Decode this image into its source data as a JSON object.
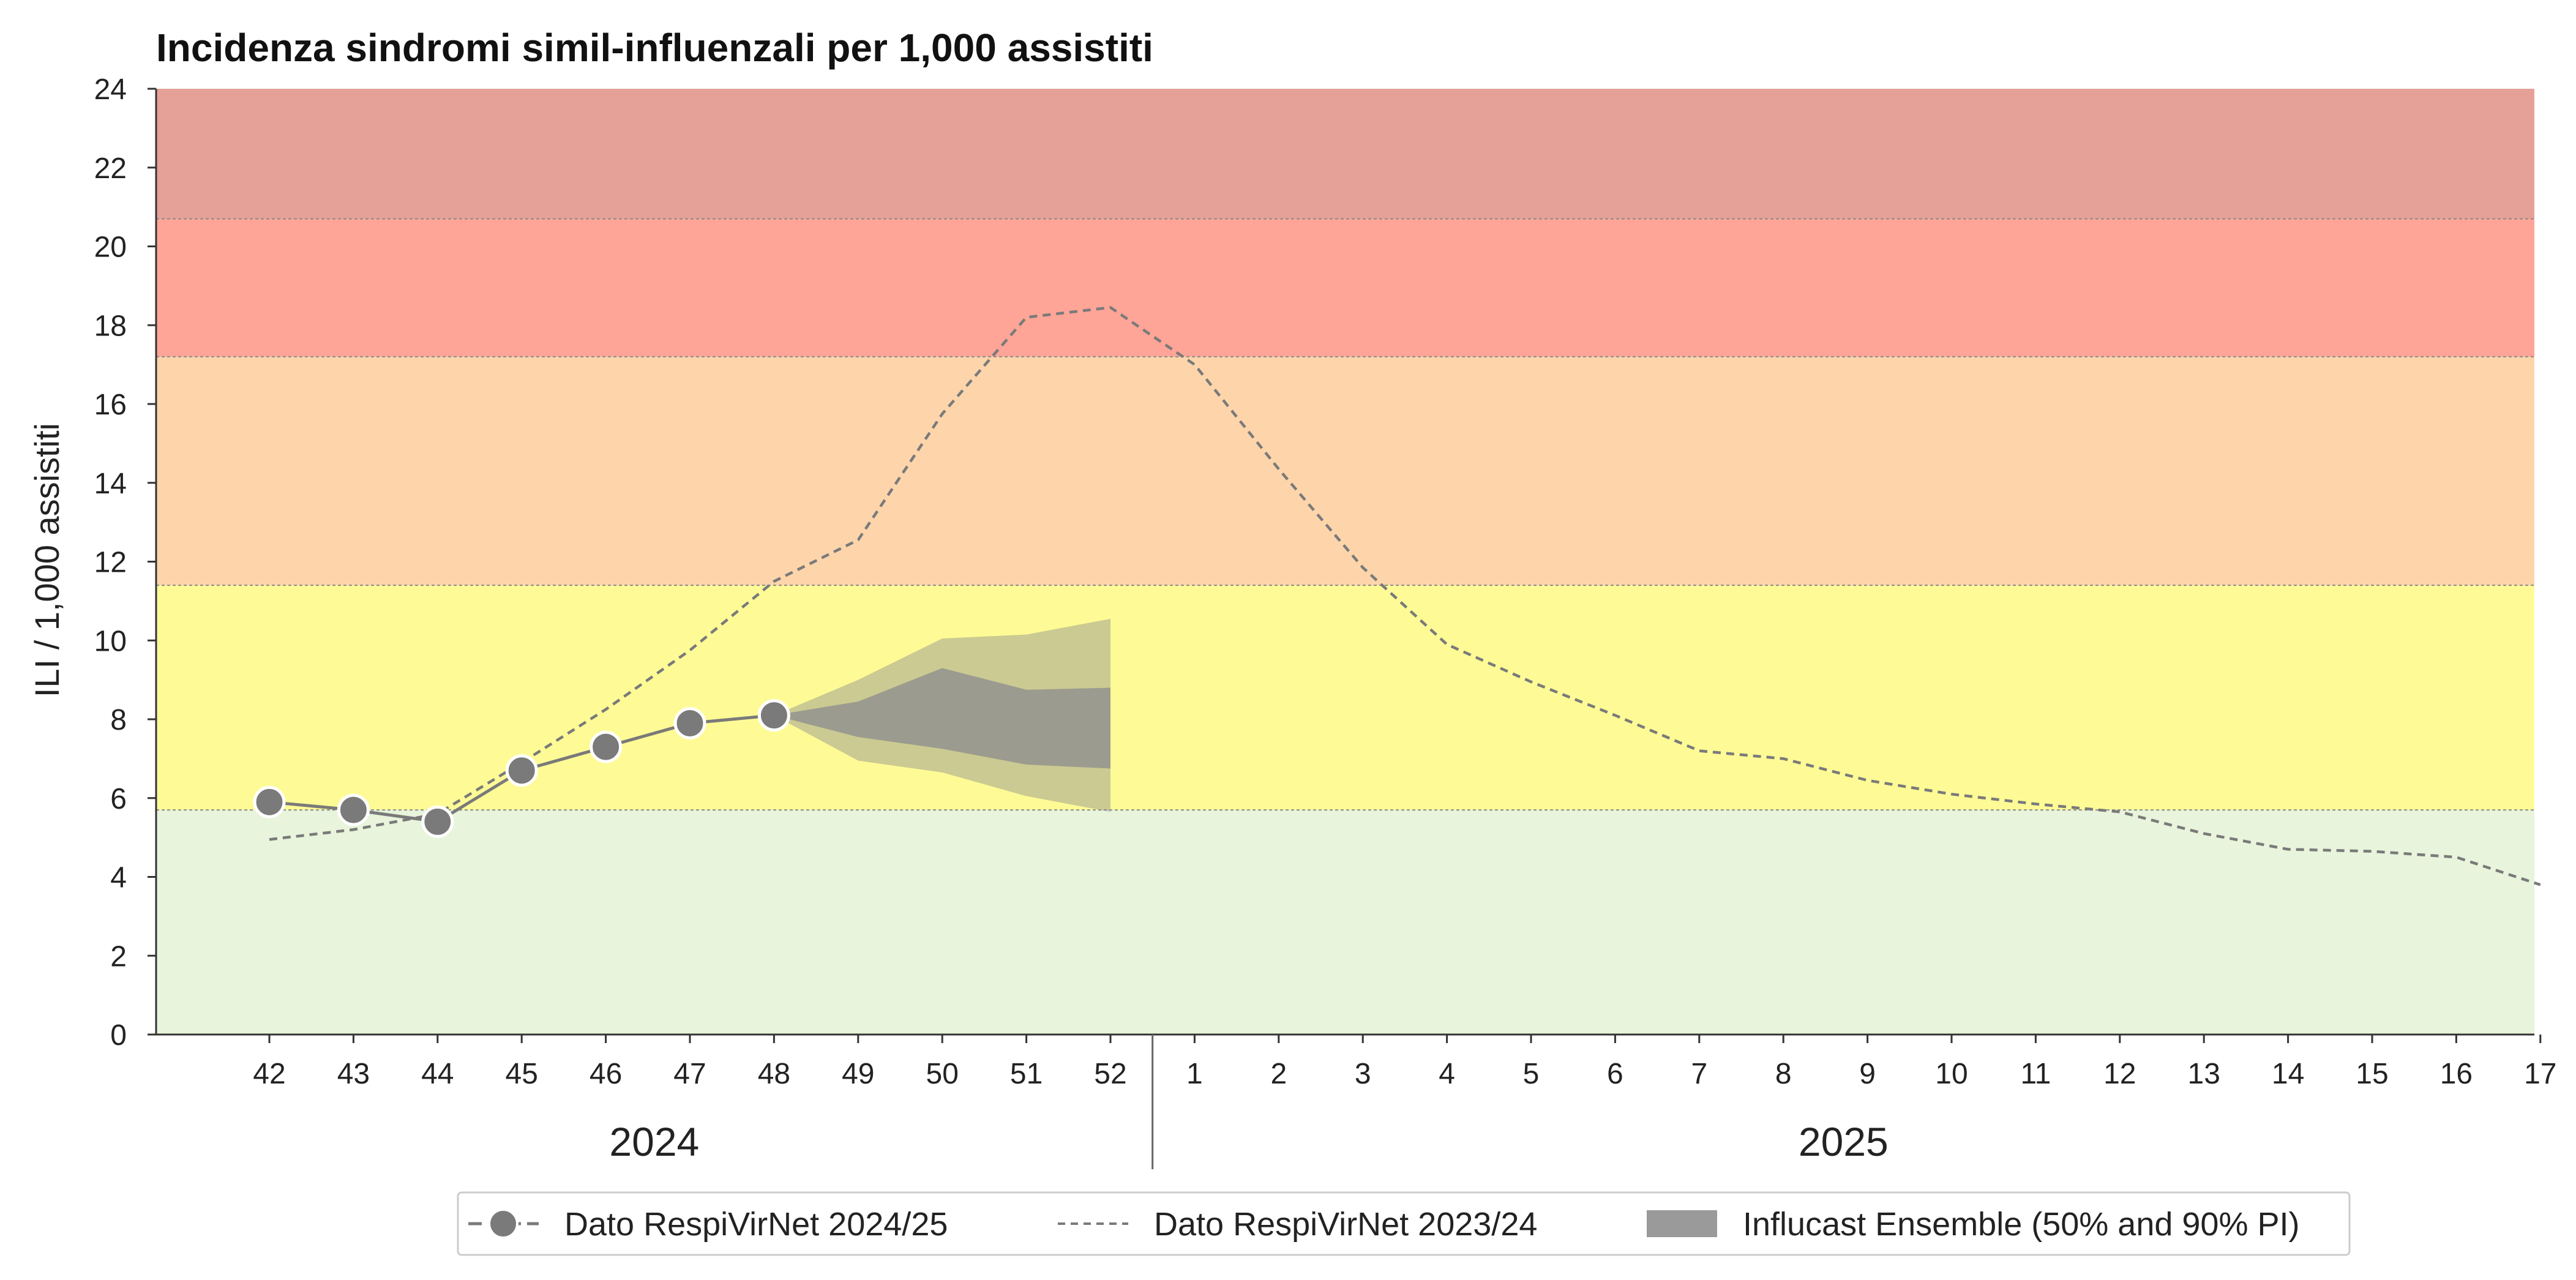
{
  "chart_data": {
    "type": "line",
    "title": "Incidenza sindromi simil-influenzali per 1,000 assistiti",
    "ylabel": "ILI / 1,000 assistiti",
    "xlabel": "",
    "ylim": [
      0,
      24
    ],
    "y_ticks": [
      "0",
      "2",
      "4",
      "6",
      "8",
      "10",
      "12",
      "14",
      "16",
      "18",
      "20",
      "22",
      "24"
    ],
    "x_ticks": [
      "42",
      "43",
      "44",
      "45",
      "46",
      "47",
      "48",
      "49",
      "50",
      "51",
      "52",
      "1",
      "2",
      "3",
      "4",
      "5",
      "6",
      "7",
      "8",
      "9",
      "10",
      "11",
      "12",
      "13",
      "14",
      "15",
      "16",
      "17"
    ],
    "year_groups": [
      {
        "label": "2024",
        "from": "42",
        "to": "52"
      },
      {
        "label": "2025",
        "from": "1",
        "to": "17"
      }
    ],
    "thresholds": [
      {
        "from": 0,
        "to": 5.7,
        "color": "#e8f4db"
      },
      {
        "from": 5.7,
        "to": 11.4,
        "color": "#fefb96"
      },
      {
        "from": 11.4,
        "to": 17.2,
        "color": "#fed5ab"
      },
      {
        "from": 17.2,
        "to": 20.7,
        "color": "#fea597"
      },
      {
        "from": 20.7,
        "to": 24,
        "color": "#e5a198"
      }
    ],
    "series": [
      {
        "name": "Dato RespiVirNet 2024/25",
        "style": "solid-markers",
        "color": "#7a7a7a",
        "x": [
          "42",
          "43",
          "44",
          "45",
          "46",
          "47",
          "48"
        ],
        "values": [
          5.9,
          5.7,
          5.4,
          6.7,
          7.3,
          7.9,
          8.1
        ]
      },
      {
        "name": "Dato RespiVirNet 2023/24",
        "style": "dashed",
        "color": "#7a7a7a",
        "x": [
          "42",
          "43",
          "44",
          "45",
          "46",
          "47",
          "48",
          "49",
          "50",
          "51",
          "52",
          "1",
          "2",
          "3",
          "4",
          "5",
          "6",
          "7",
          "8",
          "9",
          "10",
          "11",
          "12",
          "13",
          "14",
          "15",
          "16",
          "17"
        ],
        "values": [
          4.95,
          5.2,
          5.6,
          6.9,
          8.25,
          9.75,
          11.5,
          12.55,
          15.75,
          18.2,
          18.45,
          17.0,
          14.35,
          11.85,
          9.9,
          8.95,
          8.1,
          7.2,
          7.0,
          6.45,
          6.1,
          5.85,
          5.65,
          5.1,
          4.7,
          4.65,
          4.5,
          3.8
        ]
      }
    ],
    "forecast": {
      "name": "Influcast Ensemble (50% and 90% PI)",
      "color": "#8f8f8f",
      "x": [
        "48",
        "49",
        "50",
        "51",
        "52"
      ],
      "pi90_lower": [
        8.1,
        6.95,
        6.65,
        6.05,
        5.65
      ],
      "pi90_upper": [
        8.1,
        9.0,
        10.05,
        10.15,
        10.55
      ],
      "pi50_lower": [
        8.1,
        7.55,
        7.25,
        6.85,
        6.75
      ],
      "pi50_upper": [
        8.1,
        8.45,
        9.3,
        8.75,
        8.8
      ]
    },
    "legend": {
      "position": "bottom-center",
      "entries": [
        "Dato RespiVirNet 2024/25",
        "Dato RespiVirNet 2023/24",
        "Influcast Ensemble (50% and 90% PI)"
      ]
    },
    "grid": false
  }
}
